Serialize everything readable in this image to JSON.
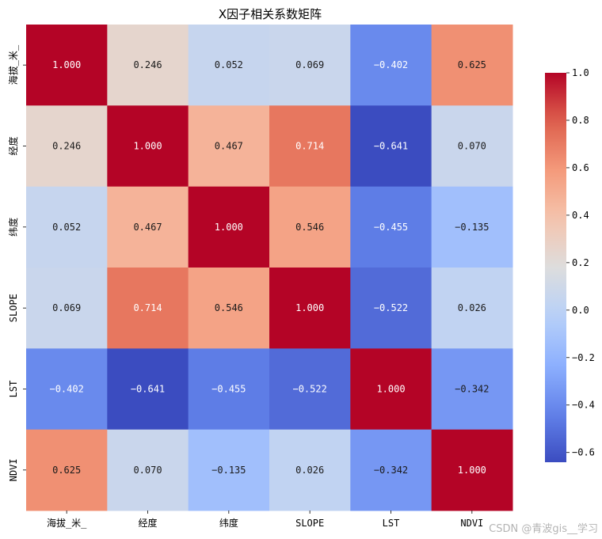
{
  "chart_data": {
    "type": "heatmap",
    "title": "X因子相关系数矩阵",
    "x_labels": [
      "海拔_米_",
      "经度",
      "纬度",
      "SLOPE",
      "LST",
      "NDVI"
    ],
    "y_labels": [
      "海拔_米_",
      "经度",
      "纬度",
      "SLOPE",
      "LST",
      "NDVI"
    ],
    "values": [
      [
        1.0,
        0.246,
        0.052,
        0.069,
        -0.402,
        0.625
      ],
      [
        0.246,
        1.0,
        0.467,
        0.714,
        -0.641,
        0.07
      ],
      [
        0.052,
        0.467,
        1.0,
        0.546,
        -0.455,
        -0.135
      ],
      [
        0.069,
        0.714,
        0.546,
        1.0,
        -0.522,
        0.026
      ],
      [
        -0.402,
        -0.641,
        -0.455,
        -0.522,
        1.0,
        -0.342
      ],
      [
        0.625,
        0.07,
        -0.135,
        0.026,
        -0.342,
        1.0
      ]
    ],
    "labels": [
      [
        "1.000",
        "0.246",
        "0.052",
        "0.069",
        "−0.402",
        "0.625"
      ],
      [
        "0.246",
        "1.000",
        "0.467",
        "0.714",
        "−0.641",
        "0.070"
      ],
      [
        "0.052",
        "0.467",
        "1.000",
        "0.546",
        "−0.455",
        "−0.135"
      ],
      [
        "0.069",
        "0.714",
        "0.546",
        "1.000",
        "−0.522",
        "0.026"
      ],
      [
        "−0.402",
        "−0.641",
        "−0.455",
        "−0.522",
        "1.000",
        "−0.342"
      ],
      [
        "0.625",
        "0.070",
        "−0.135",
        "0.026",
        "−0.342",
        "1.000"
      ]
    ],
    "colormap": "coolwarm",
    "colorbar": {
      "range": [
        -0.641,
        1.0
      ],
      "ticks": [
        -0.6,
        -0.4,
        -0.2,
        0.0,
        0.2,
        0.4,
        0.6,
        0.8,
        1.0
      ],
      "tick_labels": [
        "−0.6",
        "−0.4",
        "−0.2",
        "0.0",
        "0.2",
        "0.4",
        "0.6",
        "0.8",
        "1.0"
      ],
      "placement": "right"
    },
    "grid": false
  },
  "watermark": "CSDN @青波gis__学习"
}
